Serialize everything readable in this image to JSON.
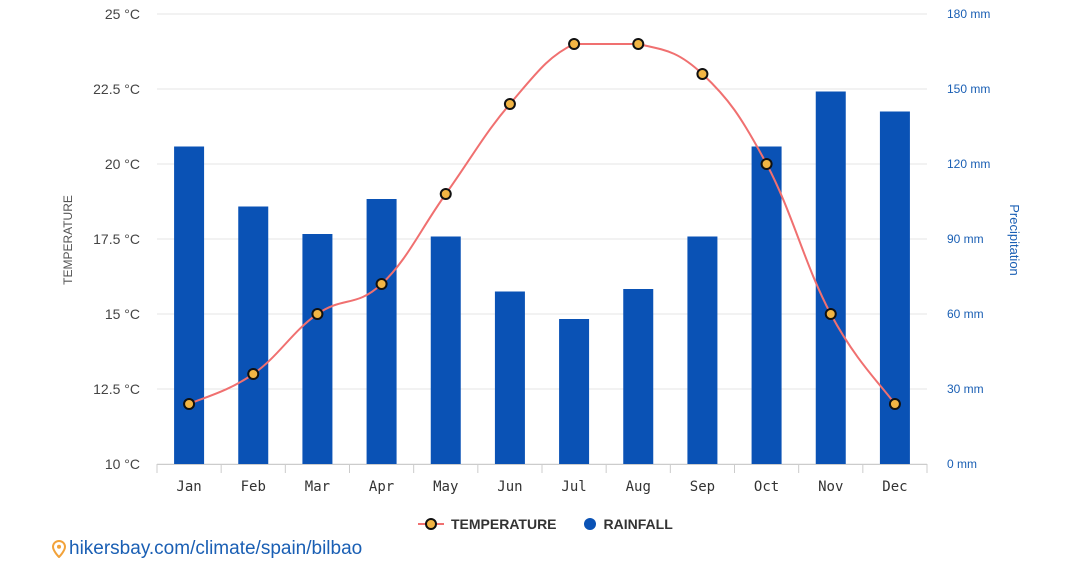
{
  "chart_data": {
    "type": "bar+line",
    "categories": [
      "Jan",
      "Feb",
      "Mar",
      "Apr",
      "May",
      "Jun",
      "Jul",
      "Aug",
      "Sep",
      "Oct",
      "Nov",
      "Dec"
    ],
    "series": [
      {
        "name": "RAINFALL",
        "type": "bar",
        "axis": "right",
        "values": [
          127,
          103,
          92,
          106,
          91,
          69,
          58,
          70,
          91,
          127,
          149,
          141
        ]
      },
      {
        "name": "TEMPERATURE",
        "type": "line",
        "axis": "left",
        "values": [
          12,
          13,
          15,
          16,
          19,
          22,
          24,
          24,
          23,
          20,
          15,
          12
        ]
      }
    ],
    "ylabel": "TEMPERATURE",
    "y2label": "Precipitation",
    "ylim": [
      10,
      25
    ],
    "y2lim": [
      0,
      180
    ],
    "yticks": [
      "10 °C",
      "12.5 °C",
      "15 °C",
      "17.5 °C",
      "20 °C",
      "22.5 °C",
      "25 °C"
    ],
    "y2ticks": [
      "0 mm",
      "30 mm",
      "60 mm",
      "90 mm",
      "120 mm",
      "150 mm",
      "180 mm"
    ],
    "colors": {
      "rainfall": "#0a52b5",
      "temperature_line": "#f07070",
      "temperature_marker": "#f2b544",
      "marker_stroke": "#111111",
      "grid": "#e6e6e6",
      "right_axis": "#1a5fb4"
    },
    "grid": true,
    "legend_position": "bottom-center"
  },
  "legend": {
    "temperature": "TEMPERATURE",
    "rainfall": "RAINFALL"
  },
  "source": {
    "text": "hikersbay.com/climate/spain/bilbao"
  },
  "icons": {
    "source_icon": "map-pin-icon"
  }
}
